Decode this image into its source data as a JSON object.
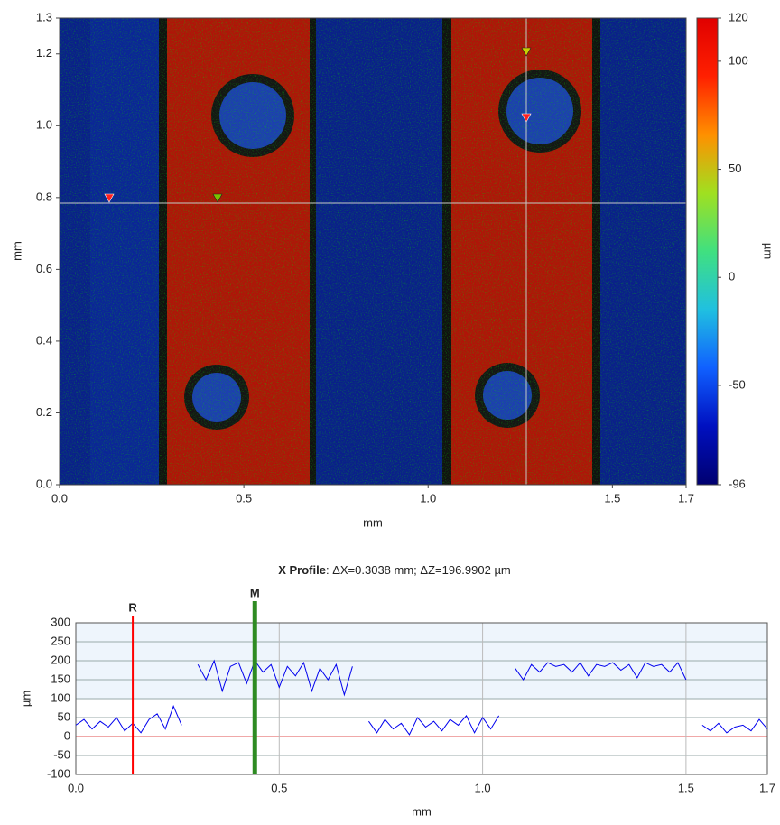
{
  "chart_data": [
    {
      "type": "heatmap",
      "xlabel": "mm",
      "ylabel": "mm",
      "xlim": [
        0,
        1.7
      ],
      "xticks": [
        {
          "value": 0,
          "label": "0.0"
        },
        0.5,
        {
          "value": 1,
          "label": "1.0"
        },
        1.5,
        1.7
      ],
      "ylim": [
        0,
        1.3
      ],
      "yticks": [
        {
          "value": 0,
          "label": "0.0"
        },
        0.2,
        0.4,
        0.6,
        0.8,
        {
          "value": 1,
          "label": "1.0"
        },
        1.2,
        1.3
      ],
      "colorbar": {
        "label": "µm",
        "lim": [
          -96,
          120
        ],
        "ticks": [
          -96,
          -50,
          0,
          50,
          100,
          120
        ],
        "colors": [
          "#000070",
          "#0010c0",
          "#1060ff",
          "#20c0e0",
          "#40e080",
          "#a0e020",
          "#ff9000",
          "#ff2000",
          "#e00000"
        ]
      }
    },
    {
      "type": "line",
      "title": "X Profile",
      "subtitle": ": ΔX=0.3038 mm; ΔZ=196.9902 µm",
      "xlabel": "mm",
      "ylabel": "µm",
      "color": "#0000ee",
      "xlim": [
        0,
        1.7
      ],
      "xticks": [
        {
          "value": 0,
          "label": "0.0"
        },
        0.5,
        {
          "value": 1,
          "label": "1.0"
        },
        1.5,
        1.7
      ],
      "ylim": [
        -100,
        300
      ],
      "yticks": [
        -100,
        -50,
        0,
        50,
        100,
        150,
        200,
        250,
        300
      ],
      "grid": true,
      "markers": [
        {
          "label": "R",
          "x": 0.14,
          "color": "#ff0000"
        },
        {
          "label": "M",
          "x": 0.44,
          "color": "#2e8b22"
        }
      ],
      "x": [
        0,
        0.02,
        0.04,
        0.06,
        0.08,
        0.1,
        0.12,
        0.14,
        0.16,
        0.18,
        0.2,
        0.22,
        0.24,
        0.26,
        0.28,
        0.3,
        0.32,
        0.34,
        0.36,
        0.38,
        0.4,
        0.42,
        0.44,
        0.46,
        0.48,
        0.5,
        0.52,
        0.54,
        0.56,
        0.58,
        0.6,
        0.62,
        0.64,
        0.66,
        0.68,
        0.7,
        0.72,
        0.74,
        0.76,
        0.78,
        0.8,
        0.82,
        0.84,
        0.86,
        0.88,
        0.9,
        0.92,
        0.94,
        0.96,
        0.98,
        1,
        1.02,
        1.04,
        1.06,
        1.08,
        1.1,
        1.12,
        1.14,
        1.16,
        1.18,
        1.2,
        1.22,
        1.24,
        1.26,
        1.28,
        1.3,
        1.32,
        1.34,
        1.36,
        1.38,
        1.4,
        1.42,
        1.44,
        1.46,
        1.48,
        1.5,
        1.52,
        1.54,
        1.56,
        1.58,
        1.6,
        1.62,
        1.64,
        1.66,
        1.68,
        1.7
      ],
      "values": [
        30,
        45,
        20,
        40,
        25,
        50,
        15,
        35,
        10,
        45,
        60,
        20,
        80,
        30,
        null,
        190,
        150,
        200,
        120,
        185,
        195,
        140,
        200,
        170,
        190,
        130,
        185,
        160,
        195,
        120,
        180,
        150,
        190,
        110,
        185,
        null,
        40,
        10,
        45,
        20,
        35,
        5,
        50,
        25,
        40,
        15,
        45,
        30,
        55,
        10,
        50,
        20,
        55,
        null,
        180,
        150,
        190,
        170,
        195,
        185,
        190,
        170,
        195,
        160,
        190,
        185,
        195,
        175,
        190,
        155,
        195,
        185,
        190,
        170,
        195,
        150,
        null,
        30,
        15,
        35,
        10,
        25,
        30,
        15,
        45,
        20
      ]
    }
  ]
}
